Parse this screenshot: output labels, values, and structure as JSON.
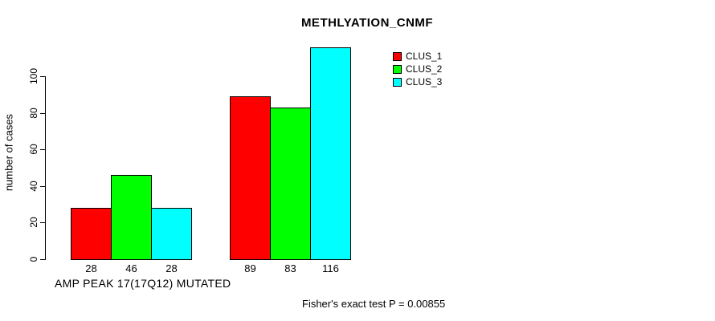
{
  "chart_data": {
    "type": "bar",
    "title": "METHLYATION_CNMF",
    "ylabel": "number of cases",
    "xlabel": "",
    "yticks": [
      0,
      20,
      40,
      60,
      80,
      100
    ],
    "ylim": [
      0,
      120
    ],
    "grid": false,
    "legend_position": "top-right",
    "series": [
      {
        "name": "CLUS_1",
        "color": "#ff0000"
      },
      {
        "name": "CLUS_2",
        "color": "#00ff00"
      },
      {
        "name": "CLUS_3",
        "color": "#00ffff"
      }
    ],
    "groups": [
      {
        "label": "AMP PEAK 17(17Q12) MUTATED",
        "values": [
          28,
          46,
          28
        ]
      },
      {
        "label": "",
        "values": [
          89,
          83,
          116
        ]
      }
    ],
    "footer": "Fisher's exact test P = 0.00855"
  }
}
